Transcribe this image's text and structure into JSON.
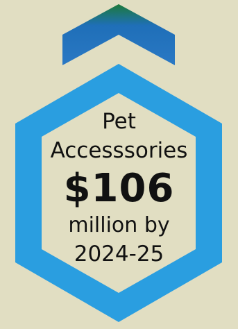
{
  "infographic": {
    "category": "Pet",
    "category_line2": "Accesssories",
    "amount": "$106",
    "unit_text": "million by",
    "period": "2024-25"
  },
  "colors": {
    "background": "#e1dec2",
    "hexagon_ring": "#2a9ee0",
    "chevron_green": "#1c7a3a",
    "chevron_blue": "#2a78c4",
    "text": "#111111"
  }
}
